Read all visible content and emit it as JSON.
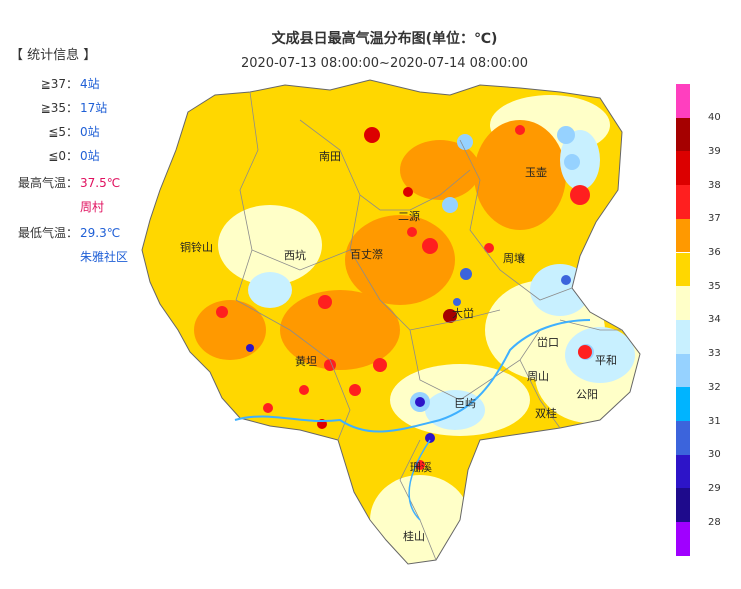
{
  "title": "文成县日最高气温分布图(单位：℃)",
  "time_range": "2020-07-13 08:00:00~2020-07-14 08:00:00",
  "stats": {
    "heading": "【 统计信息 】",
    "rows": [
      {
        "label": "≧37：",
        "value": "4站"
      },
      {
        "label": "≧35：",
        "value": "17站"
      },
      {
        "label": "≦5：",
        "value": "0站"
      },
      {
        "label": "≦0：",
        "value": "0站"
      },
      {
        "label": "最高气温：",
        "value": "37.5℃"
      },
      {
        "label": "",
        "value": "周村"
      },
      {
        "label": "最低气温：",
        "value": "29.3℃"
      },
      {
        "label": "",
        "value": "朱雅社区"
      }
    ]
  },
  "places": [
    "南田",
    "玉壶",
    "二源",
    "铜铃山",
    "西坑",
    "百丈漈",
    "周壤",
    "大峃",
    "峃口",
    "黄坦",
    "平和",
    "周山",
    "公阳",
    "双桂",
    "巨屿",
    "珊溪",
    "桂山"
  ],
  "legend": {
    "ticks": [
      "40",
      "39",
      "38",
      "37",
      "36",
      "35",
      "34",
      "33",
      "32",
      "31",
      "30",
      "29",
      "28"
    ],
    "colors": [
      "#ff3fbf",
      "#a50000",
      "#dc0000",
      "#ff1f1f",
      "#ff9900",
      "#ffd700",
      "#ffffc8",
      "#c8f0ff",
      "#96d2ff",
      "#00b4ff",
      "#3c64dc",
      "#2d14c8",
      "#1e0a8c",
      "#a000ff"
    ]
  }
}
